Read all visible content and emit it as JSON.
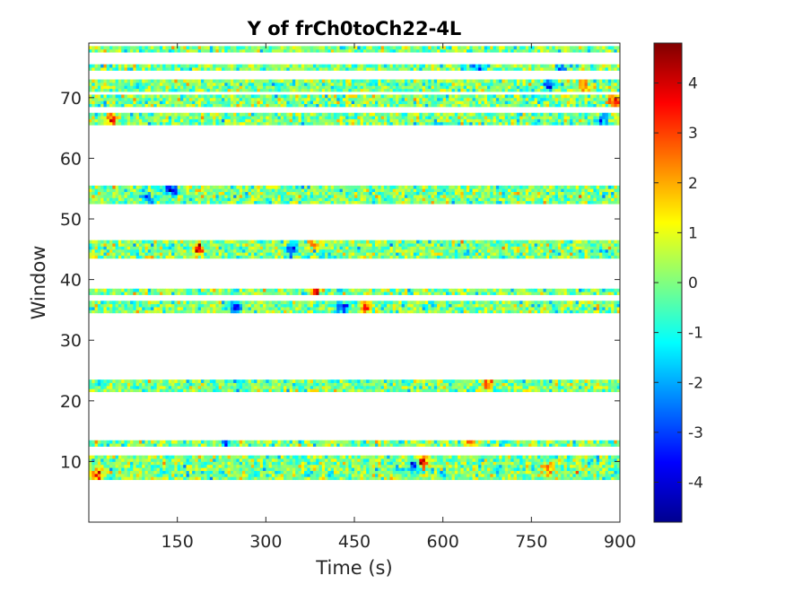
{
  "chart_data": {
    "type": "heatmap",
    "title": "Y of frCh0toCh22-4L",
    "xlabel": "Time (s)",
    "ylabel": "Window",
    "xlim": [
      0,
      900
    ],
    "ylim": [
      0,
      79
    ],
    "x_ticks": [
      150,
      300,
      450,
      600,
      750,
      900
    ],
    "y_ticks": [
      10,
      20,
      30,
      40,
      50,
      60,
      70
    ],
    "colormap": "jet",
    "clim": [
      -4.8,
      4.8
    ],
    "colorbar": {
      "ticks": [
        4,
        3,
        2,
        1,
        0,
        -1,
        -2,
        -3,
        -4
      ],
      "tick_labels": [
        "4",
        "3",
        "2",
        "1",
        "0",
        "-1",
        "-2",
        "-3",
        "-4"
      ]
    },
    "grid": false,
    "time_bins": 180,
    "window_bands": [
      {
        "start": 7,
        "end": 11,
        "label": "windows 7-11"
      },
      {
        "start": 12.5,
        "end": 13.5,
        "label": "window 13"
      },
      {
        "start": 21.5,
        "end": 23.5,
        "label": "windows 22-23"
      },
      {
        "start": 34.5,
        "end": 36.5,
        "label": "windows 35-36"
      },
      {
        "start": 37.5,
        "end": 38.5,
        "label": "window 38"
      },
      {
        "start": 43.5,
        "end": 46.5,
        "label": "windows 44-46"
      },
      {
        "start": 52.5,
        "end": 55.5,
        "label": "windows 53-55"
      },
      {
        "start": 65.5,
        "end": 67.5,
        "label": "windows 66-67"
      },
      {
        "start": 68.5,
        "end": 70.5,
        "label": "windows 69-70"
      },
      {
        "start": 71,
        "end": 73,
        "label": "windows 71-73"
      },
      {
        "start": 74.5,
        "end": 75.5,
        "label": "window 75"
      },
      {
        "start": 77.5,
        "end": 78.5,
        "label": "window 78"
      }
    ],
    "hotspots": [
      {
        "x": 185,
        "y": 45,
        "value": 4.5
      },
      {
        "x": 565,
        "y": 10,
        "value": 4.0
      },
      {
        "x": 675,
        "y": 22.5,
        "value": 4.0
      },
      {
        "x": 470,
        "y": 35.5,
        "value": 3.6
      },
      {
        "x": 890,
        "y": 69.5,
        "value": 4.5
      },
      {
        "x": 40,
        "y": 66.5,
        "value": 3.5
      },
      {
        "x": 385,
        "y": 38,
        "value": 3.5
      },
      {
        "x": 840,
        "y": 72,
        "value": 3.2
      },
      {
        "x": 645,
        "y": 13,
        "value": 3.0
      },
      {
        "x": 15,
        "y": 8,
        "value": 3.5
      },
      {
        "x": 380,
        "y": 46,
        "value": 3.0
      },
      {
        "x": 780,
        "y": 9,
        "value": 3.0
      },
      {
        "x": 250,
        "y": 35.5,
        "value": -4.5
      },
      {
        "x": 430,
        "y": 35.5,
        "value": -4.0
      },
      {
        "x": 140,
        "y": 55,
        "value": -4.0
      },
      {
        "x": 780,
        "y": 72,
        "value": -3.5
      },
      {
        "x": 345,
        "y": 45,
        "value": -3.5
      },
      {
        "x": 550,
        "y": 9.5,
        "value": -3.5
      },
      {
        "x": 870,
        "y": 66.5,
        "value": -3.0
      },
      {
        "x": 230,
        "y": 13,
        "value": -3.0
      },
      {
        "x": 800,
        "y": 75,
        "value": -3.0
      },
      {
        "x": 100,
        "y": 53.5,
        "value": -3.0
      },
      {
        "x": 660,
        "y": 75,
        "value": -3.0
      }
    ]
  }
}
